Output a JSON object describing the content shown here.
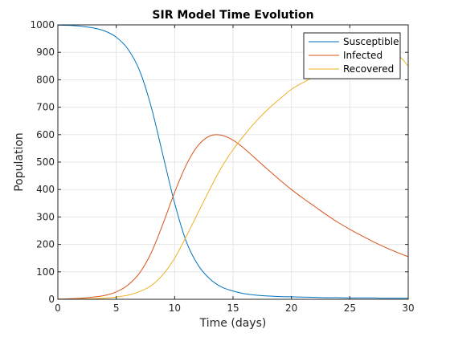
{
  "chart_data": {
    "type": "line",
    "title": "SIR Model Time Evolution",
    "xlabel": "Time (days)",
    "ylabel": "Population",
    "xlim": [
      0,
      30
    ],
    "ylim": [
      0,
      1000
    ],
    "xticks": [
      0,
      5,
      10,
      15,
      20,
      25,
      30
    ],
    "yticks": [
      0,
      100,
      200,
      300,
      400,
      500,
      600,
      700,
      800,
      900,
      1000
    ],
    "grid": true,
    "legend_position": "top-right",
    "x": [
      0,
      1,
      2,
      3,
      4,
      5,
      6,
      7,
      8,
      9,
      10,
      11,
      12,
      13,
      14,
      15,
      16,
      17,
      18,
      19,
      20,
      21,
      22,
      23,
      24,
      25,
      26,
      27,
      28,
      29,
      30
    ],
    "series": [
      {
        "name": "Susceptible",
        "color": "#0072BD",
        "values": [
          999,
          998,
          995,
          989,
          978,
          955,
          912,
          833,
          700,
          525,
          350,
          210,
          125,
          75,
          45,
          30,
          20,
          15,
          12,
          10,
          9,
          8,
          7,
          6,
          6,
          5,
          5,
          5,
          4,
          4,
          4
        ]
      },
      {
        "name": "Infected",
        "color": "#D95319",
        "values": [
          1,
          2,
          4,
          8,
          14,
          27,
          52,
          96,
          170,
          275,
          390,
          490,
          560,
          595,
          598,
          580,
          548,
          510,
          472,
          435,
          400,
          368,
          338,
          308,
          280,
          255,
          232,
          210,
          190,
          172,
          155
        ]
      },
      {
        "name": "Recovered",
        "color": "#EDB120",
        "values": [
          0,
          0,
          1,
          2,
          4,
          8,
          15,
          28,
          50,
          90,
          150,
          230,
          315,
          400,
          480,
          545,
          600,
          650,
          693,
          730,
          765,
          790,
          812,
          830,
          845,
          855,
          866,
          876,
          885,
          893,
          850
        ]
      }
    ]
  }
}
